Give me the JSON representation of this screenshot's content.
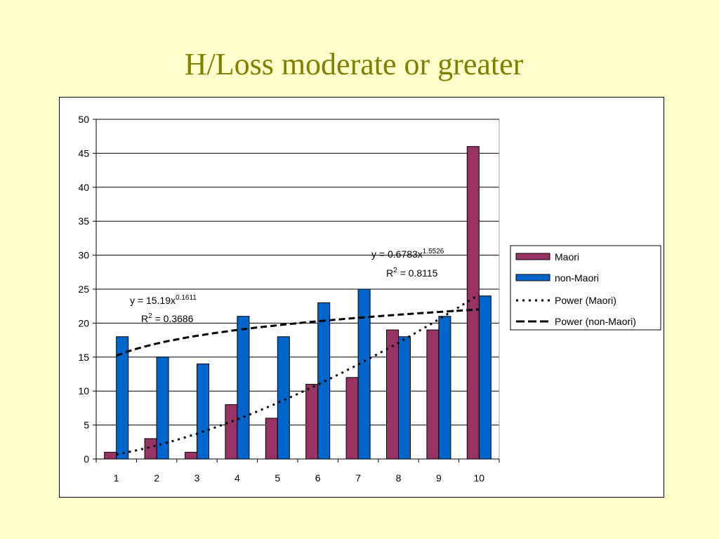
{
  "slide": {
    "title": "H/Loss moderate or greater"
  },
  "chart_data": {
    "type": "bar",
    "categories": [
      "1",
      "2",
      "3",
      "4",
      "5",
      "6",
      "7",
      "8",
      "9",
      "10"
    ],
    "ylim": [
      0,
      50
    ],
    "ytick_step": 5,
    "grid": true,
    "legend_position": "right",
    "series": [
      {
        "name": "Maori",
        "color": "#993366",
        "values": [
          1,
          3,
          1,
          8,
          6,
          11,
          12,
          19,
          19,
          46
        ]
      },
      {
        "name": "non-Maori",
        "color": "#0066CC",
        "values": [
          18,
          15,
          14,
          21,
          18,
          23,
          25,
          18,
          21,
          24
        ]
      }
    ],
    "trendlines": [
      {
        "name": "Power (Maori)",
        "type": "power",
        "series": "Maori",
        "a": 0.6783,
        "b": 1.5526,
        "style": "dotted",
        "equation": {
          "main": "y = 0.6783x",
          "exp": "1.5526",
          "r2_prefix": "R",
          "r2_sup": "2",
          "r2_value": " = 0.8115"
        }
      },
      {
        "name": "Power (non-Maori)",
        "type": "power",
        "series": "non-Maori",
        "a": 15.19,
        "b": 0.1611,
        "style": "dashed",
        "equation": {
          "main": "y = 15.19x",
          "exp": "0.1611",
          "r2_prefix": "R",
          "r2_sup": "2",
          "r2_value": " = 0.3686"
        }
      }
    ],
    "legend": [
      "Maori",
      "non-Maori",
      "Power (Maori)",
      "Power (non-Maori)"
    ]
  }
}
